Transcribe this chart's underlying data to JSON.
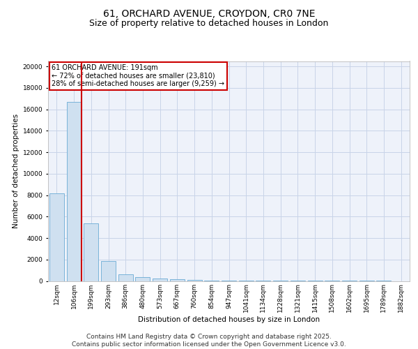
{
  "title_line1": "61, ORCHARD AVENUE, CROYDON, CR0 7NE",
  "title_line2": "Size of property relative to detached houses in London",
  "xlabel": "Distribution of detached houses by size in London",
  "ylabel": "Number of detached properties",
  "bar_color": "#cfe0f0",
  "bar_edge_color": "#6aaad4",
  "grid_color": "#c8d4e8",
  "background_color": "#eef2fa",
  "vline_color": "#cc0000",
  "annotation_text": "61 ORCHARD AVENUE: 191sqm\n← 72% of detached houses are smaller (23,810)\n28% of semi-detached houses are larger (9,259) →",
  "annotation_box_color": "#cc0000",
  "categories": [
    "12sqm",
    "106sqm",
    "199sqm",
    "293sqm",
    "386sqm",
    "480sqm",
    "573sqm",
    "667sqm",
    "760sqm",
    "854sqm",
    "947sqm",
    "1041sqm",
    "1134sqm",
    "1228sqm",
    "1321sqm",
    "1415sqm",
    "1508sqm",
    "1602sqm",
    "1695sqm",
    "1789sqm",
    "1882sqm"
  ],
  "values": [
    8150,
    16700,
    5400,
    1850,
    650,
    370,
    210,
    155,
    105,
    60,
    30,
    15,
    10,
    5,
    5,
    3,
    2,
    2,
    1,
    1,
    0
  ],
  "ylim": [
    0,
    20500
  ],
  "yticks": [
    0,
    2000,
    4000,
    6000,
    8000,
    10000,
    12000,
    14000,
    16000,
    18000,
    20000
  ],
  "footer_text": "Contains HM Land Registry data © Crown copyright and database right 2025.\nContains public sector information licensed under the Open Government Licence v3.0.",
  "title_fontsize": 10,
  "subtitle_fontsize": 9,
  "axis_label_fontsize": 7.5,
  "tick_fontsize": 6.5,
  "footer_fontsize": 6.5
}
